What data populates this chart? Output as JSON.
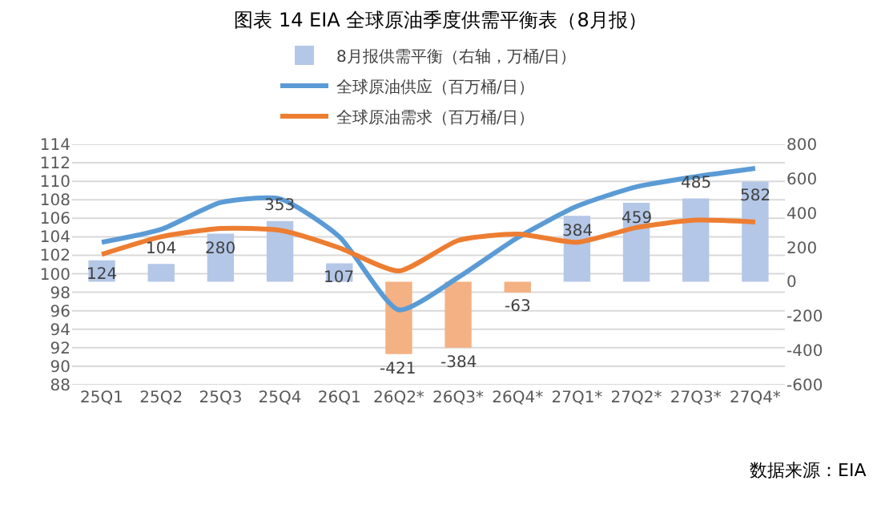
{
  "chart_data": {
    "type": "line",
    "title": "图表 14 EIA 全球原油季度供需平衡表（8月报）",
    "categories": [
      "25Q1",
      "25Q2",
      "25Q3",
      "25Q4",
      "26Q1",
      "26Q2*",
      "26Q3*",
      "26Q4*",
      "27Q1*",
      "27Q2*",
      "27Q3*",
      "27Q4*"
    ],
    "series": [
      {
        "name": "8月报供需平衡（右轴，万桶/日）",
        "type": "bar",
        "axis": "y2",
        "color": "#b4c7e7",
        "colors": [
          "#b4c7e7",
          "#b4c7e7",
          "#b4c7e7",
          "#b4c7e7",
          "#b4c7e7",
          "#f4b183",
          "#f4b183",
          "#f4b183",
          "#b4c7e7",
          "#b4c7e7",
          "#b4c7e7",
          "#b4c7e7"
        ],
        "values": [
          124,
          104,
          280,
          353,
          107,
          -421,
          -384,
          -63,
          384,
          459,
          485,
          582
        ],
        "value_labels": [
          "124",
          "104",
          "280",
          "353",
          "107",
          "-421",
          "-384",
          "-63",
          "384",
          "459",
          "485",
          "582"
        ]
      },
      {
        "name": "全球原油供应（百万桶/日）",
        "color": "#5b9bd5",
        "values": [
          103.4,
          104.8,
          107.7,
          108.1,
          104.0,
          96.1,
          99.6,
          103.9,
          107.3,
          109.4,
          110.5,
          111.4
        ]
      },
      {
        "name": "全球原油需求（百万桶/日）",
        "color": "#ed7d31",
        "values": [
          102.1,
          104.0,
          104.9,
          104.7,
          102.8,
          100.3,
          103.6,
          104.3,
          103.4,
          105.0,
          105.8,
          105.6
        ]
      }
    ],
    "ylim": [
      88,
      114
    ],
    "yticks": [
      88,
      90,
      92,
      94,
      96,
      98,
      100,
      102,
      104,
      106,
      108,
      110,
      112,
      114
    ],
    "y2lim": [
      -600,
      800
    ],
    "y2ticks": [
      -600,
      -400,
      -200,
      0,
      200,
      400,
      600,
      800
    ],
    "grid": "y",
    "legend": "top",
    "marker": "none",
    "line_style": "solid",
    "annotations": [
      "数据来源：EIA"
    ]
  }
}
